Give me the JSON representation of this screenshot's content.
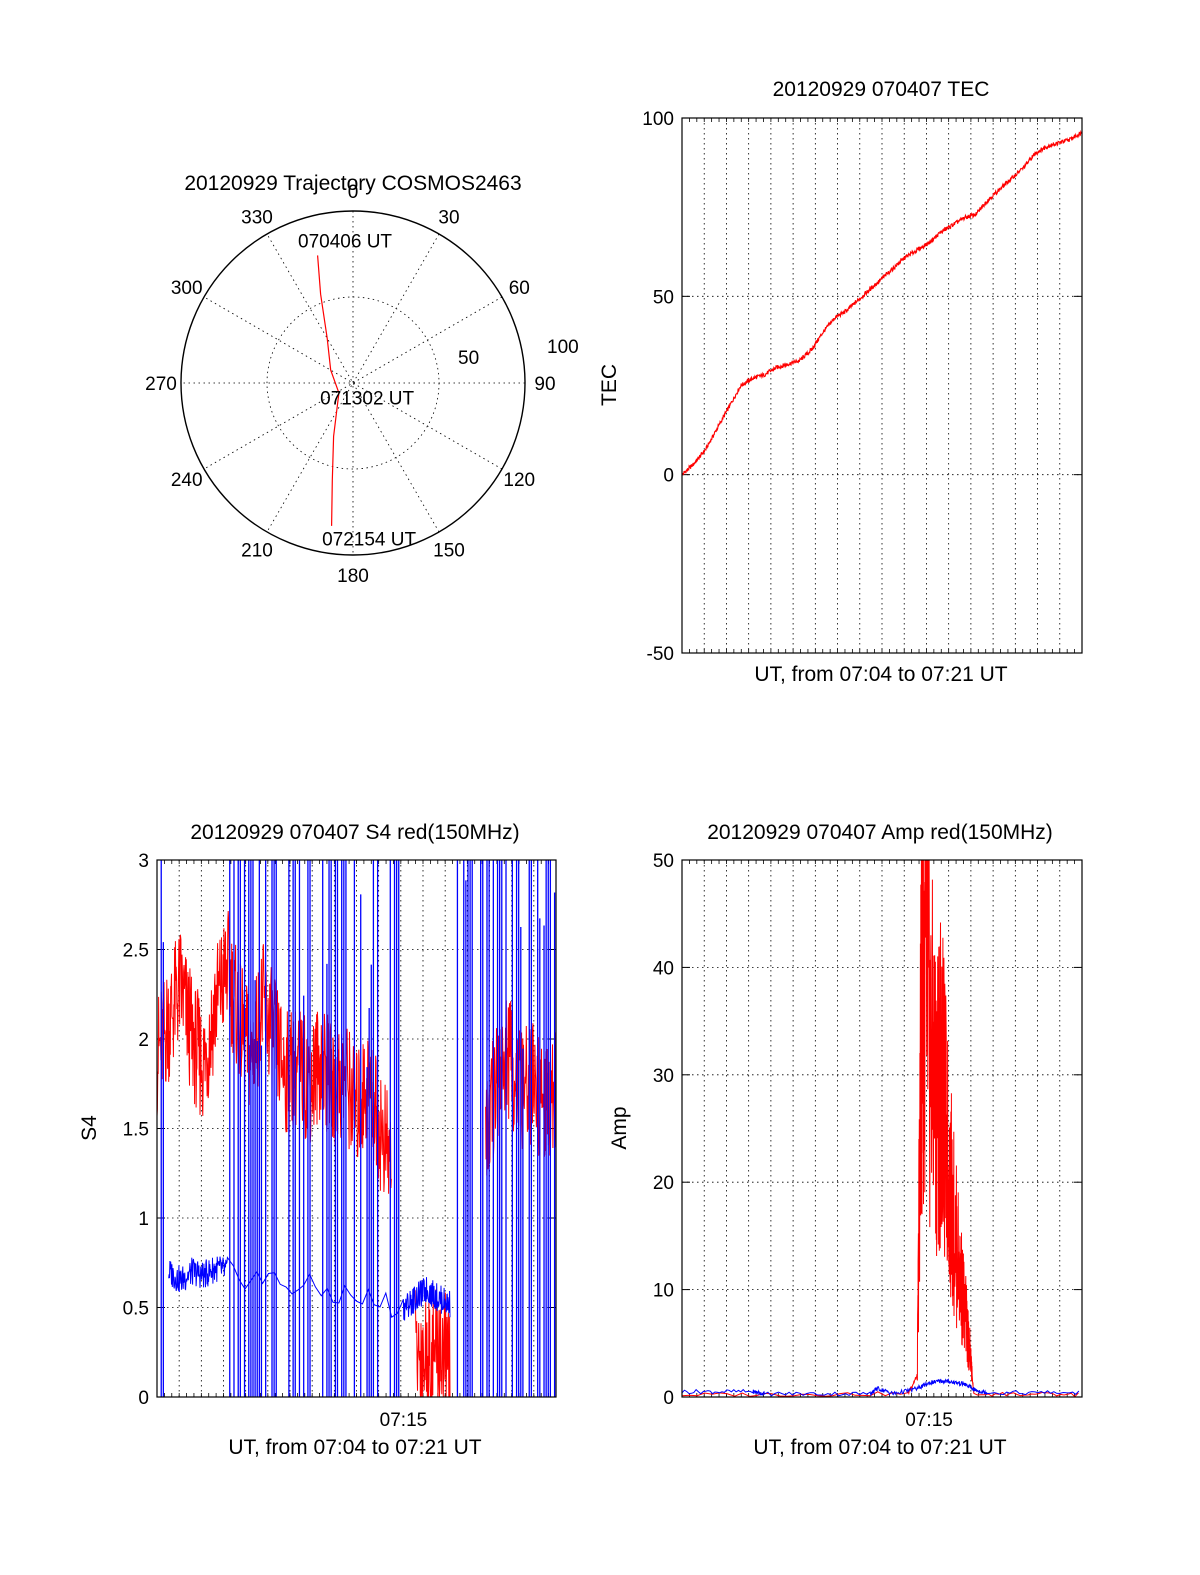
{
  "chart_data": [
    {
      "type": "polar",
      "name": "trajectory",
      "title": "20120929 Trajectory COSMOS2463",
      "azimuth_labels": [
        "0",
        "30",
        "60",
        "90",
        "120",
        "150",
        "180",
        "210",
        "240",
        "270",
        "300",
        "330"
      ],
      "radial_labels": [
        "50",
        "100"
      ],
      "rlim": [
        0,
        100
      ],
      "grid": true,
      "color": "#ff0000",
      "track": [
        {
          "az": 344.5,
          "r": 77
        },
        {
          "az": 340.0,
          "r": 55
        },
        {
          "az": 330.0,
          "r": 30
        },
        {
          "az": 300.0,
          "r": 15
        },
        {
          "az": 235.0,
          "r": 10
        },
        {
          "az": 200.0,
          "r": 33
        },
        {
          "az": 192.0,
          "r": 58
        },
        {
          "az": 188.5,
          "r": 84
        }
      ],
      "annotations": [
        {
          "text": "070406 UT",
          "az": 358,
          "r": 83
        },
        {
          "text": "071302 UT",
          "az": 130,
          "r": 13
        },
        {
          "text": "072154 UT",
          "az": 173,
          "r": 91
        }
      ]
    },
    {
      "type": "line",
      "name": "tec",
      "title": "20120929 070407 TEC",
      "xlabel": "UT, from 07:04 to 07:21 UT",
      "ylabel": "TEC",
      "xlim": [
        0,
        17
      ],
      "ylim": [
        -50,
        100
      ],
      "yticks": [
        -50,
        0,
        50,
        100
      ],
      "grid": true,
      "color": "#ff0000",
      "series": [
        {
          "x": [
            0,
            0.5,
            1.0,
            1.5,
            2.0,
            2.5,
            3.0,
            3.5,
            4.0,
            4.5,
            5.0,
            5.5,
            6.0,
            6.5,
            7.0,
            7.5,
            8.0,
            8.5,
            9.0,
            9.5,
            10.0,
            10.5,
            11.0,
            11.5,
            12.0,
            12.5,
            13.0,
            13.5,
            14.0,
            14.5,
            15.0,
            15.5,
            16.0,
            16.5,
            17.0
          ],
          "y": [
            0,
            3,
            7,
            13,
            19,
            25,
            27,
            28,
            30,
            31,
            32,
            35,
            40,
            44,
            46,
            49,
            52,
            55,
            58,
            61,
            63,
            65,
            68,
            70,
            72,
            73,
            77,
            80,
            83,
            86,
            90,
            92,
            93,
            94,
            96
          ]
        }
      ]
    },
    {
      "type": "line",
      "name": "s4",
      "title": "20120929 070407 S4 red(150MHz)",
      "xlabel": "UT, from 07:04 to 07:21 UT",
      "ylabel": "S4",
      "xlim": [
        0,
        17
      ],
      "ylim": [
        0,
        3
      ],
      "yticks": [
        0,
        0.5,
        1,
        1.5,
        2,
        2.5,
        3
      ],
      "xticks": [
        {
          "value": 10.5,
          "label": "07:15"
        }
      ],
      "grid": true,
      "series": [
        {
          "color": "#ff0000",
          "x": [
            0,
            0.5,
            1.0,
            1.5,
            2.0,
            2.5,
            3.0,
            3.5,
            4.0,
            4.5,
            5.0,
            5.5,
            6.0,
            6.5,
            7.0,
            7.5,
            8.0,
            8.5,
            9.0,
            9.5,
            10.0,
            10.5,
            11.0,
            11.5,
            12.0,
            12.5,
            13.0,
            13.5,
            14.0,
            14.5,
            15.0,
            15.5,
            16.0,
            16.5,
            17.0
          ],
          "y": [
            1.9,
            2.1,
            2.3,
            2.0,
            1.85,
            2.2,
            2.4,
            2.1,
            1.9,
            2.2,
            2.0,
            1.8,
            1.85,
            1.75,
            1.9,
            1.7,
            1.8,
            1.6,
            1.75,
            1.5,
            1.3,
            null,
            0.25,
            0.22,
            0.28,
            0.2,
            null,
            null,
            1.4,
            1.8,
            1.9,
            1.7,
            1.75,
            1.6,
            1.7
          ]
        },
        {
          "color": "#0000ff",
          "x": [
            0.5,
            1.0,
            1.5,
            2.0,
            2.5,
            3.0,
            10.5,
            11.0,
            11.5,
            12.0,
            12.5
          ],
          "y": [
            0.7,
            0.65,
            0.7,
            0.68,
            0.72,
            0.7,
            0.5,
            0.55,
            0.6,
            0.55,
            0.52
          ]
        }
      ]
    },
    {
      "type": "line",
      "name": "amp",
      "title": "20120929 070407 Amp red(150MHz)",
      "xlabel": "UT, from 07:04 to 07:21 UT",
      "ylabel": "Amp",
      "xlim": [
        0,
        17
      ],
      "ylim": [
        0,
        50
      ],
      "yticks": [
        0,
        10,
        20,
        30,
        40,
        50
      ],
      "xticks": [
        {
          "value": 10.5,
          "label": "07:15"
        }
      ],
      "grid": true,
      "series": [
        {
          "color": "#ff0000",
          "x": [
            0,
            9.6,
            10.0,
            10.15,
            10.3,
            10.5,
            10.8,
            11.0,
            11.3,
            11.6,
            11.9,
            12.2,
            12.4,
            17.0
          ],
          "y": [
            0.2,
            0.3,
            2.0,
            33.0,
            40.0,
            34.0,
            28.0,
            30.0,
            22.0,
            15.0,
            10.0,
            5.0,
            0.3,
            0.2
          ]
        },
        {
          "color": "#0000ff",
          "x": [
            0,
            3.0,
            3.5,
            8.0,
            8.3,
            9.0,
            10.0,
            10.5,
            11.0,
            11.5,
            12.0,
            12.5,
            13.0,
            17.0
          ],
          "y": [
            0.5,
            0.5,
            0.3,
            0.3,
            0.8,
            0.3,
            0.8,
            1.3,
            1.5,
            1.4,
            1.2,
            0.6,
            0.4,
            0.4
          ]
        }
      ]
    }
  ]
}
